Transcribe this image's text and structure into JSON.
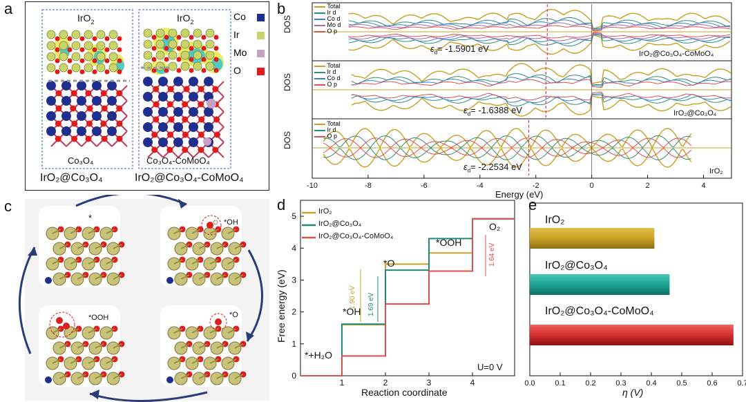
{
  "panel_a": {
    "label": "a",
    "left_title": "IrO",
    "right_title": "IrO",
    "title_sub": "2",
    "left_sub": "Co₃O₄",
    "right_sub": "Co₃O₄-CoMoO₄",
    "left_caption": "IrO₂@Co₃O₄",
    "right_caption": "IrO₂@Co₃O₄-CoMoO₄",
    "legend": [
      {
        "name": "Co",
        "color": "#1f2f8f"
      },
      {
        "name": "Ir",
        "color": "#c9d46a"
      },
      {
        "name": "Mo",
        "color": "#c8a0c0"
      },
      {
        "name": "O",
        "color": "#e01b1b"
      }
    ]
  },
  "panel_b": {
    "label": "b",
    "y_label": "DOS",
    "x_label": "Energy (eV)",
    "x_ticks": [
      "-10",
      "-8",
      "-6",
      "-4",
      "-2",
      "0",
      "2",
      "4"
    ],
    "subplots": [
      {
        "legend": [
          {
            "name": "Total",
            "color": "#c8a020"
          },
          {
            "name": "Ir d",
            "color": "#2a8f7a"
          },
          {
            "name": "Co d",
            "color": "#3a7fd0"
          },
          {
            "name": "Mo d",
            "color": "#a56bb0"
          },
          {
            "name": "O p",
            "color": "#e05050"
          }
        ],
        "ed_text": "= -1.5901 eV",
        "ed_value": -1.5901,
        "material": "IrO₂@Co₃O₄-CoMoO₄"
      },
      {
        "legend": [
          {
            "name": "Total",
            "color": "#c8a020"
          },
          {
            "name": "Ir d",
            "color": "#2a8f7a"
          },
          {
            "name": "Co d",
            "color": "#3a7fd0"
          },
          {
            "name": "O p",
            "color": "#e05050"
          }
        ],
        "ed_text": "= -1.6388 eV",
        "ed_value": -1.6388,
        "material": "IrO₂@Co₃O₄"
      },
      {
        "legend": [
          {
            "name": "Total",
            "color": "#c8a020"
          },
          {
            "name": "Ir d",
            "color": "#2a8f7a"
          },
          {
            "name": "O p",
            "color": "#e05050"
          }
        ],
        "ed_text": "= -2.2534 eV",
        "ed_value": -2.2534,
        "material": "IrO₂"
      }
    ]
  },
  "panel_c": {
    "label": "c",
    "states": [
      "*",
      "*OH",
      "*OOH",
      "*O"
    ]
  },
  "panel_d": {
    "label": "d",
    "y_label": "Free energy (eV)",
    "x_label": "Reaction coordinate",
    "y_ticks": [
      "0",
      "1",
      "2",
      "3",
      "4",
      "5"
    ],
    "x_ticks": [
      "1",
      "2",
      "3",
      "4"
    ],
    "legend": [
      {
        "name": "IrO₂",
        "color": "#c9a227"
      },
      {
        "name": "IrO₂@Co₃O₄",
        "color": "#1f8a78"
      },
      {
        "name": "IrO₂@Co₃O₄-CoMoO₄",
        "color": "#e04b4b"
      }
    ],
    "step_labels": [
      "*+H₂O",
      "*OH",
      "*O",
      "*OOH",
      "O₂"
    ],
    "annotations": [
      {
        "text": "1.90 eV",
        "color": "#c9a227"
      },
      {
        "text": "1.69 eV",
        "color": "#1f8a78"
      },
      {
        "text": "1.64 eV",
        "color": "#e04b4b"
      }
    ],
    "condition": "U=0 V"
  },
  "panel_e": {
    "label": "e",
    "x_label": "η (V)",
    "x_ticks": [
      "0.0",
      "0.1",
      "0.2",
      "0.3",
      "0.4",
      "0.5",
      "0.6",
      "0.7"
    ],
    "bars": [
      {
        "name": "IrO₂",
        "color": "#c9a227"
      },
      {
        "name": "IrO₂@Co₃O₄",
        "color": "#1fa392"
      },
      {
        "name": "IrO₂@Co₃O₄-CoMoO₄",
        "color": "#d42e2e"
      }
    ]
  },
  "chart_data": [
    {
      "type": "line",
      "panel": "d",
      "ylabel": "Free energy (eV)",
      "xlabel": "Reaction coordinate",
      "categories": [
        "*+H₂O",
        "*OH",
        "*O",
        "*OOH",
        "O₂"
      ],
      "ylim": [
        0,
        5.5
      ],
      "series": [
        {
          "name": "IrO₂",
          "values": [
            0,
            1.6,
            3.5,
            3.85,
            4.92
          ]
        },
        {
          "name": "IrO₂@Co₃O₄",
          "values": [
            0,
            1.62,
            3.31,
            4.3,
            4.92
          ]
        },
        {
          "name": "IrO₂@Co₃O₄-CoMoO₄",
          "values": [
            0,
            0.62,
            2.25,
            3.28,
            4.92
          ]
        }
      ]
    },
    {
      "type": "bar",
      "panel": "e",
      "orientation": "horizontal",
      "xlabel": "η (V)",
      "categories": [
        "IrO₂",
        "IrO₂@Co₃O₄",
        "IrO₂@Co₃O₄-CoMoO₄"
      ],
      "values": [
        0.41,
        0.46,
        0.67
      ],
      "xlim": [
        0,
        0.7
      ]
    }
  ]
}
